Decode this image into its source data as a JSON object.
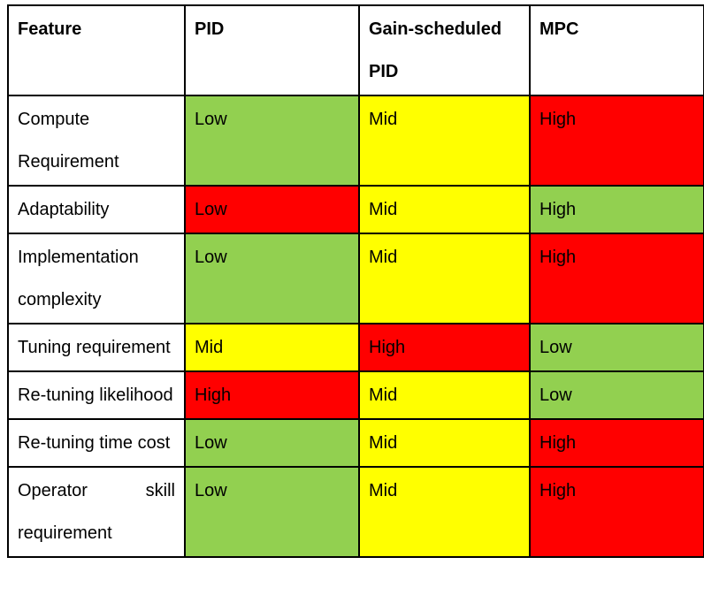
{
  "table": {
    "colors": {
      "green": "#92D050",
      "yellow": "#FFFF00",
      "red": "#FF0000",
      "border": "#000000",
      "text": "#000000"
    },
    "columns": [
      {
        "label": "Feature"
      },
      {
        "label": "PID"
      },
      {
        "label": "Gain-scheduled PID"
      },
      {
        "label": "MPC"
      }
    ],
    "rows": [
      {
        "feature": "Compute Requirement",
        "cells": [
          {
            "text": "Low",
            "color": "green"
          },
          {
            "text": "Mid",
            "color": "yellow"
          },
          {
            "text": "High",
            "color": "red"
          }
        ]
      },
      {
        "feature": "Adaptability",
        "cells": [
          {
            "text": "Low",
            "color": "red"
          },
          {
            "text": "Mid",
            "color": "yellow"
          },
          {
            "text": "High",
            "color": "green"
          }
        ]
      },
      {
        "feature": "Implementation complexity",
        "cells": [
          {
            "text": "Low",
            "color": "green"
          },
          {
            "text": "Mid",
            "color": "yellow"
          },
          {
            "text": "High",
            "color": "red"
          }
        ]
      },
      {
        "feature": "Tuning requirement",
        "cells": [
          {
            "text": "Mid",
            "color": "yellow"
          },
          {
            "text": "High",
            "color": "red"
          },
          {
            "text": "Low",
            "color": "green"
          }
        ]
      },
      {
        "feature": "Re-tuning likelihood",
        "cells": [
          {
            "text": "High",
            "color": "red"
          },
          {
            "text": "Mid",
            "color": "yellow"
          },
          {
            "text": "Low",
            "color": "green"
          }
        ]
      },
      {
        "feature": "Re-tuning time cost",
        "cells": [
          {
            "text": "Low",
            "color": "green"
          },
          {
            "text": "Mid",
            "color": "yellow"
          },
          {
            "text": "High",
            "color": "red"
          }
        ]
      },
      {
        "feature": "Operator skill requirement",
        "cells": [
          {
            "text": "Low",
            "color": "green"
          },
          {
            "text": "Mid",
            "color": "yellow"
          },
          {
            "text": "High",
            "color": "red"
          }
        ]
      }
    ]
  },
  "chart_data": {
    "type": "table",
    "title": "",
    "columns": [
      "Feature",
      "PID",
      "Gain-scheduled PID",
      "MPC"
    ],
    "rows": [
      [
        "Compute Requirement",
        "Low",
        "Mid",
        "High"
      ],
      [
        "Adaptability",
        "Low",
        "Mid",
        "High"
      ],
      [
        "Implementation complexity",
        "Low",
        "Mid",
        "High"
      ],
      [
        "Tuning requirement",
        "Mid",
        "High",
        "Low"
      ],
      [
        "Re-tuning likelihood",
        "High",
        "Mid",
        "Low"
      ],
      [
        "Re-tuning time cost",
        "Low",
        "Mid",
        "High"
      ],
      [
        "Operator skill requirement",
        "Low",
        "Mid",
        "High"
      ]
    ],
    "cell_colors": [
      [
        "white",
        "green",
        "yellow",
        "red"
      ],
      [
        "white",
        "red",
        "yellow",
        "green"
      ],
      [
        "white",
        "green",
        "yellow",
        "red"
      ],
      [
        "white",
        "yellow",
        "red",
        "green"
      ],
      [
        "white",
        "red",
        "yellow",
        "green"
      ],
      [
        "white",
        "green",
        "yellow",
        "red"
      ],
      [
        "white",
        "green",
        "yellow",
        "red"
      ]
    ]
  }
}
